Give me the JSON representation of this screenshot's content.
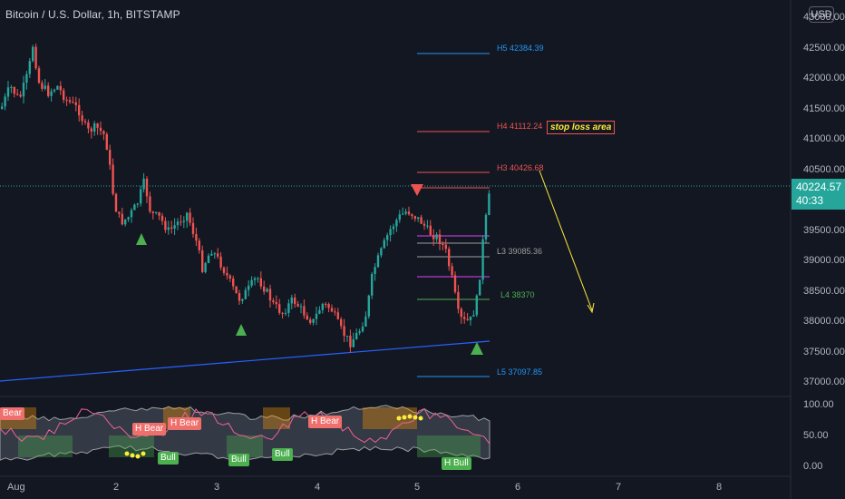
{
  "header": {
    "title": "Bitcoin / U.S. Dollar, 1h, BITSTAMP",
    "currency": "USD"
  },
  "price_axis": {
    "ticks": [
      "42500.00",
      "42000.00",
      "41500.00",
      "41000.00",
      "40500.00",
      "39500.00",
      "39000.00",
      "38500.00",
      "38000.00",
      "37500.00",
      "37000.00"
    ],
    "top_partial": "43000.00"
  },
  "current_price": {
    "value": "40224.57",
    "countdown": "40:33"
  },
  "oscillator_axis": {
    "ticks": [
      "100.00",
      "50.00",
      "0.00"
    ]
  },
  "time_axis": {
    "ticks": [
      "Aug",
      "2",
      "3",
      "4",
      "5",
      "6",
      "7",
      "8"
    ]
  },
  "levels": {
    "h5": "H5 42384.39",
    "h4": "H4 41112.24",
    "h3": "H3 40426.68",
    "l3": "L3 39085.36",
    "l4": "L4 38370",
    "l5": "L5 37097.85"
  },
  "annotation": {
    "stop_loss": "stop loss area"
  },
  "oscillator_badges": {
    "bear1": "Bear",
    "bear2": "H Bear",
    "bear3": "H Bear",
    "bear4": "H Bear",
    "bull1": "Bull",
    "bull2": "Bull",
    "bull3": "Bull",
    "bull4": "H Bull"
  },
  "colors": {
    "up": "#26a69a",
    "down": "#ef5350",
    "background": "#131722",
    "trendline": "#2962ff",
    "arrow": "#ffeb3b"
  },
  "chart_data": {
    "type": "candlestick",
    "symbol": "BTCUSD",
    "interval": "1h",
    "ylim": [
      36850,
      43000
    ],
    "oscillator_ylim": [
      0,
      100
    ],
    "levels": [
      {
        "name": "H5",
        "value": 42384.39
      },
      {
        "name": "H4",
        "value": 41112.24
      },
      {
        "name": "H3",
        "value": 40426.68
      },
      {
        "name": "L3",
        "value": 39085.36
      },
      {
        "name": "L4",
        "value": 38370
      },
      {
        "name": "L5",
        "value": 37097.85
      }
    ],
    "last_price": 40224.57
  }
}
